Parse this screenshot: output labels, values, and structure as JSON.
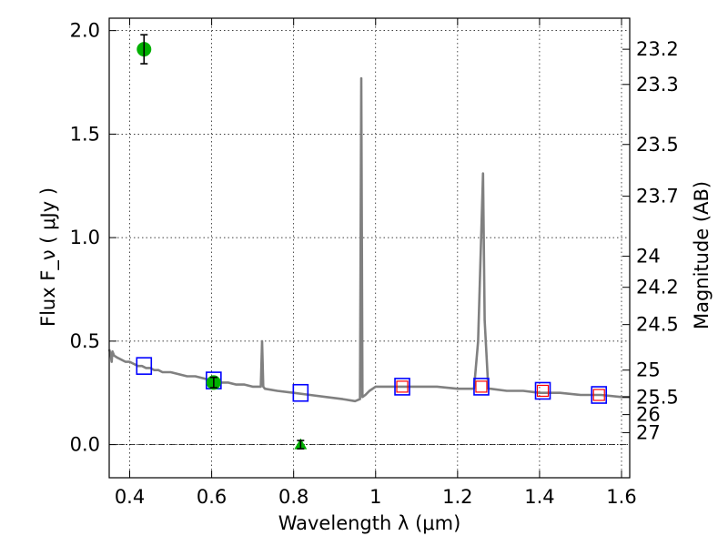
{
  "chart_data": {
    "type": "line",
    "xlabel": "Wavelength λ (μm)",
    "ylabel": "Flux F_ν ( μJy )",
    "ylabel_right": "Magnitude (AB)",
    "xlim": [
      0.35,
      1.62
    ],
    "ylim": [
      -0.16,
      2.06
    ],
    "grid": true,
    "x_ticks": [
      0.4,
      0.6,
      0.8,
      1.0,
      1.2,
      1.4,
      1.6
    ],
    "x_tick_labels": [
      "0.4",
      "0.6",
      "0.8",
      "1",
      "1.2",
      "1.4",
      "1.6"
    ],
    "y_ticks": [
      0.0,
      0.5,
      1.0,
      1.5,
      2.0
    ],
    "y_tick_labels": [
      "0.0",
      "0.5",
      "1.0",
      "1.5",
      "2.0"
    ],
    "right_ticks": [
      {
        "label": "23.2",
        "flux": 1.91
      },
      {
        "label": "23.3",
        "flux": 1.74
      },
      {
        "label": "23.5",
        "flux": 1.45
      },
      {
        "label": "23.7",
        "flux": 1.2
      },
      {
        "label": "24",
        "flux": 0.91
      },
      {
        "label": "24.2",
        "flux": 0.76
      },
      {
        "label": "24.5",
        "flux": 0.58
      },
      {
        "label": "25",
        "flux": 0.36
      },
      {
        "label": "25.5",
        "flux": 0.23
      },
      {
        "label": "26",
        "flux": 0.145
      },
      {
        "label": "27",
        "flux": 0.058
      }
    ],
    "series": [
      {
        "style": "spectrum",
        "color": "#808080",
        "x": [
          0.35,
          0.353,
          0.356,
          0.358,
          0.362,
          0.37,
          0.38,
          0.39,
          0.4,
          0.41,
          0.42,
          0.43,
          0.44,
          0.45,
          0.46,
          0.47,
          0.48,
          0.5,
          0.52,
          0.54,
          0.56,
          0.58,
          0.6,
          0.62,
          0.64,
          0.66,
          0.68,
          0.7,
          0.715,
          0.72,
          0.723,
          0.726,
          0.73,
          0.76,
          0.8,
          0.84,
          0.88,
          0.92,
          0.95,
          0.962,
          0.965,
          0.968,
          0.975,
          0.985,
          1.0,
          1.05,
          1.1,
          1.15,
          1.2,
          1.24,
          1.25,
          1.262,
          1.266,
          1.275,
          1.28,
          1.32,
          1.36,
          1.4,
          1.45,
          1.5,
          1.55,
          1.6,
          1.62
        ],
        "y": [
          0.46,
          0.44,
          0.4,
          0.45,
          0.43,
          0.42,
          0.41,
          0.4,
          0.4,
          0.39,
          0.38,
          0.38,
          0.37,
          0.37,
          0.36,
          0.36,
          0.35,
          0.35,
          0.34,
          0.33,
          0.33,
          0.32,
          0.31,
          0.3,
          0.3,
          0.29,
          0.29,
          0.28,
          0.28,
          0.28,
          0.5,
          0.28,
          0.27,
          0.26,
          0.25,
          0.24,
          0.23,
          0.22,
          0.21,
          0.22,
          1.77,
          0.23,
          0.24,
          0.26,
          0.28,
          0.28,
          0.28,
          0.28,
          0.27,
          0.27,
          0.5,
          1.31,
          0.6,
          0.27,
          0.27,
          0.26,
          0.26,
          0.25,
          0.25,
          0.24,
          0.24,
          0.23,
          0.23
        ]
      },
      {
        "style": "blue-squares",
        "color": "#0000ff",
        "x": [
          0.435,
          0.605,
          0.817,
          1.065,
          1.258,
          1.408,
          1.545
        ],
        "y": [
          0.38,
          0.31,
          0.25,
          0.28,
          0.28,
          0.26,
          0.24
        ]
      },
      {
        "style": "red-squares",
        "color": "#ff0000",
        "x": [
          1.065,
          1.258,
          1.408,
          1.545
        ],
        "y": [
          0.28,
          0.28,
          0.26,
          0.24
        ]
      },
      {
        "style": "green-points",
        "color": "#00b000",
        "points": [
          {
            "x": 0.435,
            "y": 1.91,
            "err": 0.07,
            "marker": "circle"
          },
          {
            "x": 0.605,
            "y": 0.3,
            "err": 0.025,
            "marker": "circle"
          },
          {
            "x": 0.817,
            "y": 0.0,
            "err": 0.02,
            "marker": "triangle"
          }
        ]
      }
    ]
  }
}
